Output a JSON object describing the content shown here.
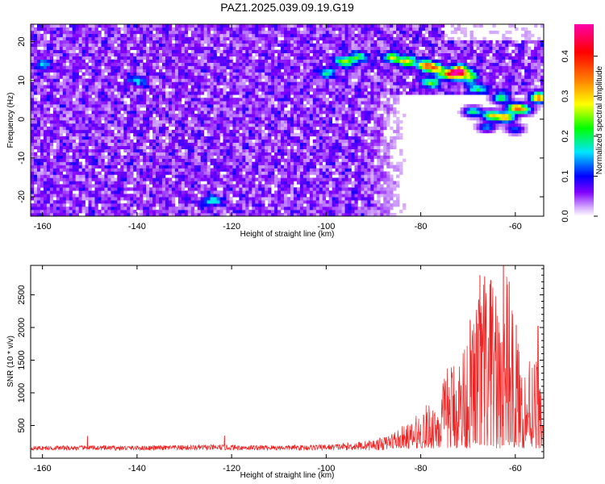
{
  "chart_data": [
    {
      "type": "heatmap",
      "title": "PAZ1.2025.039.09.19.G19",
      "xlabel": "Height of straight line (km)",
      "ylabel": "Frequency (Hz)",
      "xlim": [
        -162.5,
        -54
      ],
      "ylim": [
        -25,
        24.5
      ],
      "x_ticks": [
        -160,
        -140,
        -120,
        -100,
        -80,
        -60
      ],
      "y_ticks": [
        -20,
        -10,
        0,
        10,
        20
      ],
      "colorbar": {
        "label": "Normalized spectral amplitude",
        "range": [
          0.0,
          0.48
        ],
        "ticks": [
          0.0,
          0.1,
          0.2,
          0.3,
          0.4
        ],
        "colors": [
          "#ffffff",
          "#d9b3ff",
          "#8000ff",
          "#0000ff",
          "#00e5ff",
          "#00ff00",
          "#ffff00",
          "#ff8000",
          "#ff0000",
          "#ff00aa"
        ]
      },
      "grid": false,
      "hotspots": [
        {
          "x": -96,
          "y": 15,
          "v": 0.22
        },
        {
          "x": -93,
          "y": 16,
          "v": 0.15
        },
        {
          "x": -86,
          "y": 16,
          "v": 0.2
        },
        {
          "x": -83,
          "y": 15,
          "v": 0.25
        },
        {
          "x": -79,
          "y": 14,
          "v": 0.28
        },
        {
          "x": -77,
          "y": 13,
          "v": 0.24
        },
        {
          "x": -72,
          "y": 12.5,
          "v": 0.45
        },
        {
          "x": -74,
          "y": 11.5,
          "v": 0.3
        },
        {
          "x": -70,
          "y": 11,
          "v": 0.22
        },
        {
          "x": -78,
          "y": 9.5,
          "v": 0.18
        },
        {
          "x": -68,
          "y": 8,
          "v": 0.16
        },
        {
          "x": -63,
          "y": 5.5,
          "v": 0.22
        },
        {
          "x": -55,
          "y": 5.5,
          "v": 0.36
        },
        {
          "x": -60,
          "y": 3,
          "v": 0.3
        },
        {
          "x": -58,
          "y": 2.5,
          "v": 0.2
        },
        {
          "x": -65,
          "y": 1,
          "v": 0.28
        },
        {
          "x": -62,
          "y": 0.5,
          "v": 0.32
        },
        {
          "x": -69,
          "y": 2,
          "v": 0.2
        },
        {
          "x": -66,
          "y": -2,
          "v": 0.14
        },
        {
          "x": -60,
          "y": -2.5,
          "v": 0.12
        },
        {
          "x": -100,
          "y": 12,
          "v": 0.13
        },
        {
          "x": -140,
          "y": 10,
          "v": 0.12
        },
        {
          "x": -124,
          "y": -21,
          "v": 0.13
        },
        {
          "x": -160,
          "y": 14,
          "v": 0.11
        }
      ]
    },
    {
      "type": "line",
      "title": "",
      "xlabel": "Height of straight line (km)",
      "ylabel": "SNR (10 * v/v)",
      "xlim": [
        -162.5,
        -54
      ],
      "ylim": [
        0,
        2950
      ],
      "x_ticks": [
        -160,
        -140,
        -120,
        -100,
        -80,
        -60
      ],
      "y_ticks": [
        500,
        1000,
        1500,
        2000,
        2500
      ],
      "color": "#ee2222",
      "grid": false,
      "envelope": {
        "x": [
          -162.5,
          -150,
          -140,
          -130,
          -120,
          -110,
          -100,
          -95,
          -90,
          -86,
          -82,
          -80,
          -78,
          -76,
          -74,
          -72,
          -70,
          -68,
          -66,
          -64,
          -62,
          -60,
          -58,
          -56,
          -54
        ],
        "y": [
          190,
          200,
          195,
          210,
          215,
          205,
          220,
          260,
          320,
          420,
          560,
          750,
          880,
          1050,
          1500,
          1650,
          2100,
          2700,
          2850,
          2500,
          2950,
          2000,
          1450,
          2000,
          700
        ]
      },
      "notable_peaks": [
        {
          "x": -150.5,
          "y": 340
        },
        {
          "x": -121.5,
          "y": 345
        },
        {
          "x": -67.5,
          "y": 2800
        },
        {
          "x": -66.5,
          "y": 2780
        },
        {
          "x": -65.2,
          "y": 2720
        },
        {
          "x": -62.5,
          "y": 2950
        },
        {
          "x": -61.3,
          "y": 2700
        },
        {
          "x": -59.8,
          "y": 2040
        },
        {
          "x": -55.2,
          "y": 2020
        }
      ]
    }
  ]
}
